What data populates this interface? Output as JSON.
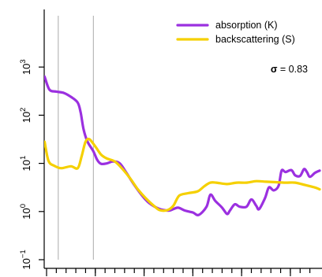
{
  "chart_data": {
    "type": "line",
    "title": "",
    "xlabel": "",
    "ylabel": "",
    "log_y": true,
    "grid": false,
    "xlim": [
      0,
      28
    ],
    "ylim": [
      -1,
      4
    ],
    "y_ticks": [
      {
        "exp": -1,
        "base": "10",
        "power": "−1"
      },
      {
        "exp": 0,
        "base": "10",
        "power": "0"
      },
      {
        "exp": 1,
        "base": "10",
        "power": "1"
      },
      {
        "exp": 2,
        "base": "10",
        "power": "2"
      },
      {
        "exp": 3,
        "base": "10",
        "power": "3"
      }
    ],
    "x_minor_ticks": [
      1,
      2,
      3,
      4,
      5,
      6,
      7,
      8,
      9,
      10,
      11,
      12,
      13,
      14,
      15,
      16,
      17,
      18,
      19,
      20,
      21,
      22,
      23,
      24,
      25,
      26,
      27
    ],
    "x_major_ticks": [
      0,
      5,
      10,
      15,
      20,
      25
    ],
    "reference_lines_x": [
      1.2,
      4.8
    ],
    "legend": {
      "position": "top-right"
    },
    "annotation": {
      "symbol": "σ",
      "text": " = 0.83"
    },
    "series": [
      {
        "name": "absorption (K)",
        "color": "#9b30e0",
        "log_values": [
          [
            -0.2,
            2.8
          ],
          [
            0.3,
            2.53
          ],
          [
            1.0,
            2.49
          ],
          [
            1.8,
            2.46
          ],
          [
            2.5,
            2.38
          ],
          [
            3.2,
            2.26
          ],
          [
            3.5,
            2.05
          ],
          [
            3.8,
            1.7
          ],
          [
            4.2,
            1.45
          ],
          [
            4.8,
            1.25
          ],
          [
            5.2,
            1.07
          ],
          [
            5.6,
            0.99
          ],
          [
            6.2,
            1.0
          ],
          [
            6.8,
            1.04
          ],
          [
            7.5,
            1.0
          ],
          [
            8.2,
            0.8
          ],
          [
            9.0,
            0.55
          ],
          [
            9.8,
            0.33
          ],
          [
            10.5,
            0.18
          ],
          [
            11.5,
            0.06
          ],
          [
            12.5,
            0.02
          ],
          [
            13.0,
            0.05
          ],
          [
            13.5,
            0.08
          ],
          [
            14.2,
            0.02
          ],
          [
            15.0,
            -0.02
          ],
          [
            15.6,
            -0.07
          ],
          [
            16.4,
            0.1
          ],
          [
            16.8,
            0.35
          ],
          [
            17.3,
            0.22
          ],
          [
            18.0,
            0.08
          ],
          [
            18.5,
            -0.05
          ],
          [
            18.8,
            0.02
          ],
          [
            19.3,
            0.15
          ],
          [
            19.8,
            0.1
          ],
          [
            20.5,
            0.1
          ],
          [
            21.0,
            0.25
          ],
          [
            21.5,
            0.12
          ],
          [
            21.8,
            0.05
          ],
          [
            22.4,
            0.28
          ],
          [
            22.8,
            0.5
          ],
          [
            23.3,
            0.44
          ],
          [
            23.8,
            0.54
          ],
          [
            24.1,
            0.85
          ],
          [
            24.5,
            0.82
          ],
          [
            25.1,
            0.86
          ],
          [
            25.5,
            0.75
          ],
          [
            26.0,
            0.74
          ],
          [
            26.4,
            0.88
          ],
          [
            26.7,
            0.82
          ],
          [
            27.0,
            0.72
          ],
          [
            27.5,
            0.8
          ],
          [
            28.0,
            0.85
          ]
        ]
      },
      {
        "name": "backscattering (S)",
        "color": "#f5d000",
        "log_values": [
          [
            -0.2,
            1.45
          ],
          [
            0.2,
            1.05
          ],
          [
            0.8,
            0.95
          ],
          [
            1.5,
            0.9
          ],
          [
            2.5,
            0.94
          ],
          [
            3.2,
            0.9
          ],
          [
            3.6,
            1.15
          ],
          [
            4.0,
            1.45
          ],
          [
            4.4,
            1.5
          ],
          [
            5.0,
            1.35
          ],
          [
            5.6,
            1.18
          ],
          [
            6.2,
            1.1
          ],
          [
            7.0,
            1.04
          ],
          [
            7.8,
            0.88
          ],
          [
            8.6,
            0.68
          ],
          [
            9.4,
            0.45
          ],
          [
            10.2,
            0.27
          ],
          [
            11.0,
            0.12
          ],
          [
            11.6,
            0.03
          ],
          [
            12.4,
            0.03
          ],
          [
            13.0,
            0.12
          ],
          [
            13.6,
            0.33
          ],
          [
            14.5,
            0.38
          ],
          [
            15.5,
            0.42
          ],
          [
            16.2,
            0.53
          ],
          [
            16.8,
            0.6
          ],
          [
            17.4,
            0.6
          ],
          [
            18.5,
            0.57
          ],
          [
            19.5,
            0.6
          ],
          [
            20.5,
            0.6
          ],
          [
            21.5,
            0.63
          ],
          [
            22.5,
            0.62
          ],
          [
            23.5,
            0.61
          ],
          [
            24.5,
            0.6
          ],
          [
            25.5,
            0.6
          ],
          [
            26.5,
            0.55
          ],
          [
            27.5,
            0.5
          ],
          [
            28.0,
            0.46
          ]
        ]
      }
    ]
  }
}
